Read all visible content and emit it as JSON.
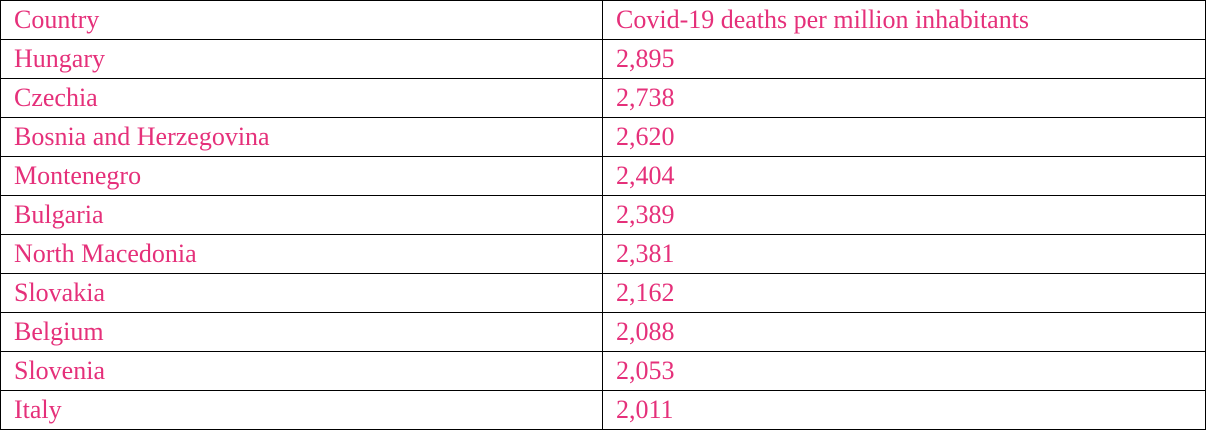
{
  "table": {
    "header": [
      "Country",
      "Covid-19 deaths per million inhabitants"
    ],
    "rows": [
      [
        "Hungary",
        "2,895"
      ],
      [
        "Czechia",
        "2,738"
      ],
      [
        "Bosnia and Herzegovina",
        "2,620"
      ],
      [
        "Montenegro",
        "2,404"
      ],
      [
        "Bulgaria",
        "2,389"
      ],
      [
        "North Macedonia",
        "2,381"
      ],
      [
        "Slovakia",
        "2,162"
      ],
      [
        "Belgium",
        "2,088"
      ],
      [
        "Slovenia",
        "2,053"
      ],
      [
        "Italy",
        "2,011"
      ]
    ]
  }
}
